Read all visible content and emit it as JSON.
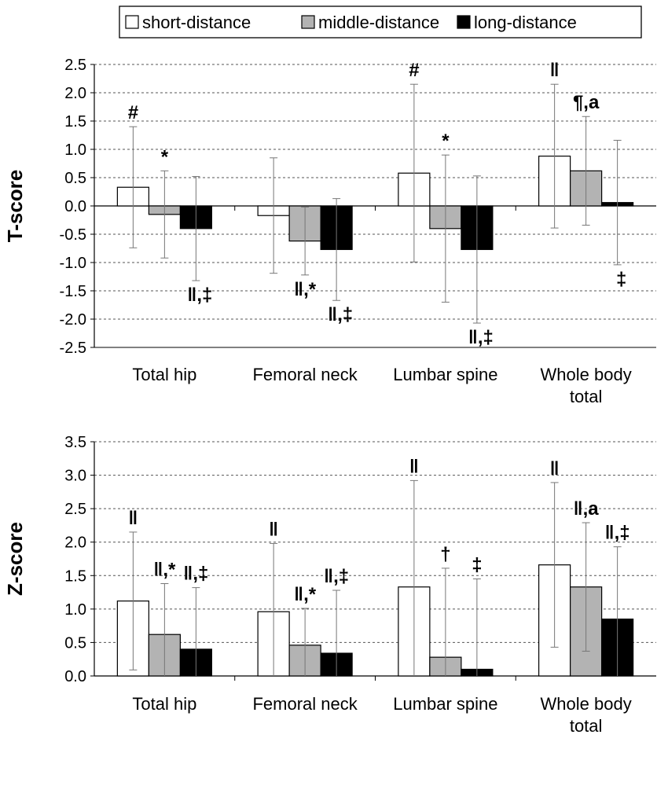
{
  "legend": [
    {
      "label": "short-distance",
      "color": "#ffffff"
    },
    {
      "label": "middle-distance",
      "color": "#b3b3b3"
    },
    {
      "label": "long-distance",
      "color": "#000000"
    }
  ],
  "chart_data": [
    {
      "type": "bar",
      "ylabel": "T-score",
      "ylim": [
        -2.5,
        2.5
      ],
      "ytick_step": 0.5,
      "grid": true,
      "legend_position": "top",
      "categories": [
        "Total hip",
        "Femoral neck",
        "Lumbar spine",
        "Whole body total"
      ],
      "series": [
        {
          "name": "short-distance",
          "color": "#ffffff",
          "values": [
            0.33,
            -0.17,
            0.58,
            0.88
          ],
          "sd": [
            1.07,
            1.02,
            1.57,
            1.27
          ],
          "annotations": [
            "#",
            "",
            "#",
            "‖"
          ]
        },
        {
          "name": "middle-distance",
          "color": "#b3b3b3",
          "values": [
            -0.15,
            -0.62,
            -0.4,
            0.62
          ],
          "sd": [
            0.77,
            0.6,
            1.3,
            0.96
          ],
          "annotations": [
            "*",
            "‖,*",
            "*",
            "¶,a"
          ]
        },
        {
          "name": "long-distance",
          "color": "#000000",
          "values": [
            -0.4,
            -0.77,
            -0.77,
            0.06
          ],
          "sd": [
            0.92,
            0.9,
            1.3,
            1.1
          ],
          "annotations": [
            "‖,‡",
            "‖,‡",
            "‖,‡",
            "‡"
          ]
        }
      ]
    },
    {
      "type": "bar",
      "ylabel": "Z-score",
      "ylim": [
        0,
        3.5
      ],
      "ytick_step": 0.5,
      "grid": true,
      "categories": [
        "Total hip",
        "Femoral neck",
        "Lumbar spine",
        "Whole body total"
      ],
      "series": [
        {
          "name": "short-distance",
          "color": "#ffffff",
          "values": [
            1.12,
            0.96,
            1.33,
            1.66
          ],
          "sd": [
            1.03,
            1.02,
            1.59,
            1.23
          ],
          "annotations": [
            "‖",
            "‖",
            "‖",
            "‖"
          ]
        },
        {
          "name": "middle-distance",
          "color": "#b3b3b3",
          "values": [
            0.62,
            0.46,
            0.28,
            1.33
          ],
          "sd": [
            0.76,
            0.55,
            1.33,
            0.96
          ],
          "annotations": [
            "‖,*",
            "‖,*",
            "†",
            "‖,a"
          ]
        },
        {
          "name": "long-distance",
          "color": "#000000",
          "values": [
            0.4,
            0.34,
            0.1,
            0.85
          ],
          "sd": [
            0.92,
            0.94,
            1.35,
            1.08
          ],
          "annotations": [
            "‖,‡",
            "‖,‡",
            "‡",
            "‖,‡"
          ]
        }
      ]
    }
  ]
}
